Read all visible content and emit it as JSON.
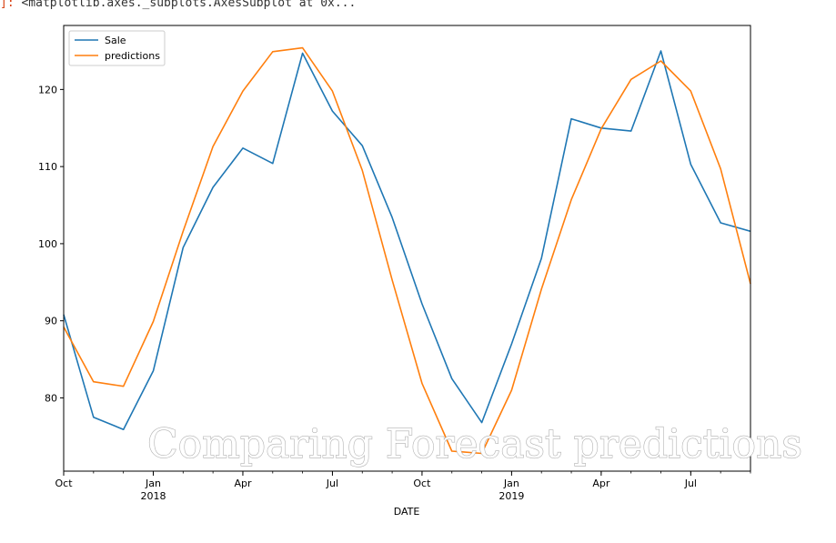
{
  "cell_output": {
    "prompt": "]:",
    "text": "<matplotlib.axes._subplots.AxesSubplot at 0x..."
  },
  "watermark": "Comparing Forecast predictions",
  "chart_data": {
    "type": "line",
    "xlabel": "DATE",
    "ylabel": "",
    "x": [
      "2017-10",
      "2017-11",
      "2017-12",
      "2018-01",
      "2018-02",
      "2018-03",
      "2018-04",
      "2018-05",
      "2018-06",
      "2018-07",
      "2018-08",
      "2018-09",
      "2018-10",
      "2018-11",
      "2018-12",
      "2019-01",
      "2019-02",
      "2019-03",
      "2019-04",
      "2019-05",
      "2019-06",
      "2019-07",
      "2019-08",
      "2019-09"
    ],
    "series": [
      {
        "name": "Sale",
        "color": "#1f77b4",
        "values": [
          90.8,
          77.5,
          75.9,
          83.5,
          99.5,
          107.3,
          112.4,
          110.4,
          124.7,
          117.2,
          112.7,
          103.4,
          92.2,
          82.5,
          76.8,
          87.0,
          98.1,
          116.2,
          115.0,
          114.6,
          125.0,
          110.3,
          102.7,
          101.6
        ]
      },
      {
        "name": "predictions",
        "color": "#ff7f0e",
        "values": [
          89.2,
          82.1,
          81.5,
          89.9,
          101.6,
          112.6,
          119.8,
          124.9,
          125.4,
          119.8,
          109.5,
          95.3,
          81.9,
          73.1,
          72.8,
          81.0,
          94.1,
          105.7,
          114.9,
          121.3,
          123.7,
          119.8,
          109.7,
          94.8
        ]
      }
    ],
    "ylim": [
      70.5,
      128.3
    ],
    "yticks": [
      80,
      90,
      100,
      110,
      120
    ],
    "xticks": [
      {
        "index": 0,
        "label": "Oct",
        "sub": ""
      },
      {
        "index": 3,
        "label": "Jan",
        "sub": "2018"
      },
      {
        "index": 6,
        "label": "Apr",
        "sub": ""
      },
      {
        "index": 9,
        "label": "Jul",
        "sub": ""
      },
      {
        "index": 12,
        "label": "Oct",
        "sub": ""
      },
      {
        "index": 15,
        "label": "Jan",
        "sub": "2019"
      },
      {
        "index": 18,
        "label": "Apr",
        "sub": ""
      },
      {
        "index": 21,
        "label": "Jul",
        "sub": ""
      }
    ],
    "grid": false,
    "legend_position": "top-left"
  }
}
